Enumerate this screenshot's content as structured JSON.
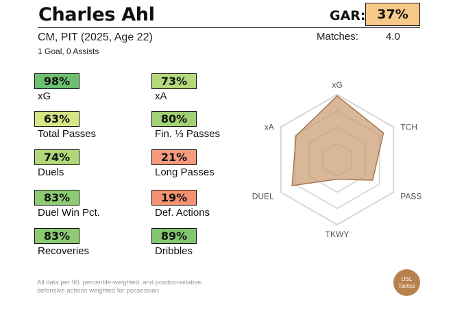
{
  "header": {
    "player_name": "Charles Ahl",
    "gar_label": "GAR:",
    "gar_value": "37%",
    "gar_color": "#f9c989",
    "position_line": "CM, PIT (2025, Age 22)",
    "goals_line": "1 Goal,  0 Assists",
    "matches_label": "Matches:",
    "matches_value": "4.0"
  },
  "metrics": [
    {
      "value": "98%",
      "label": "xG",
      "color": "#6cc06f"
    },
    {
      "value": "73%",
      "label": "xA",
      "color": "#b5d97a"
    },
    {
      "value": "63%",
      "label": "Total Passes",
      "color": "#d8e585"
    },
    {
      "value": "80%",
      "label": "Fin. ⅓ Passes",
      "color": "#a0d175"
    },
    {
      "value": "74%",
      "label": "Duels",
      "color": "#b0d779"
    },
    {
      "value": "21%",
      "label": "Long Passes",
      "color": "#f59a7a"
    },
    {
      "value": "83%",
      "label": "Duel Win Pct.",
      "color": "#8ccb72"
    },
    {
      "value": "19%",
      "label": "Def. Actions",
      "color": "#f4926f"
    },
    {
      "value": "83%",
      "label": "Recoveries",
      "color": "#8ccb72"
    },
    {
      "value": "89%",
      "label": "Dribbles",
      "color": "#80c770"
    }
  ],
  "radar": {
    "axes": [
      "xG",
      "TCH",
      "PASS",
      "TKWY",
      "DUEL",
      "xA"
    ],
    "values": [
      0.98,
      0.82,
      0.63,
      0.3,
      0.8,
      0.73
    ],
    "fill_color": "#c89a6e",
    "stroke_color": "#a87650"
  },
  "footnote": {
    "line1": "All data per 90, percentile-weighted, and position-relative;",
    "line2": "defensive actions weighted for possession"
  },
  "logo": {
    "line1": "USL",
    "line2": "Tactics"
  }
}
